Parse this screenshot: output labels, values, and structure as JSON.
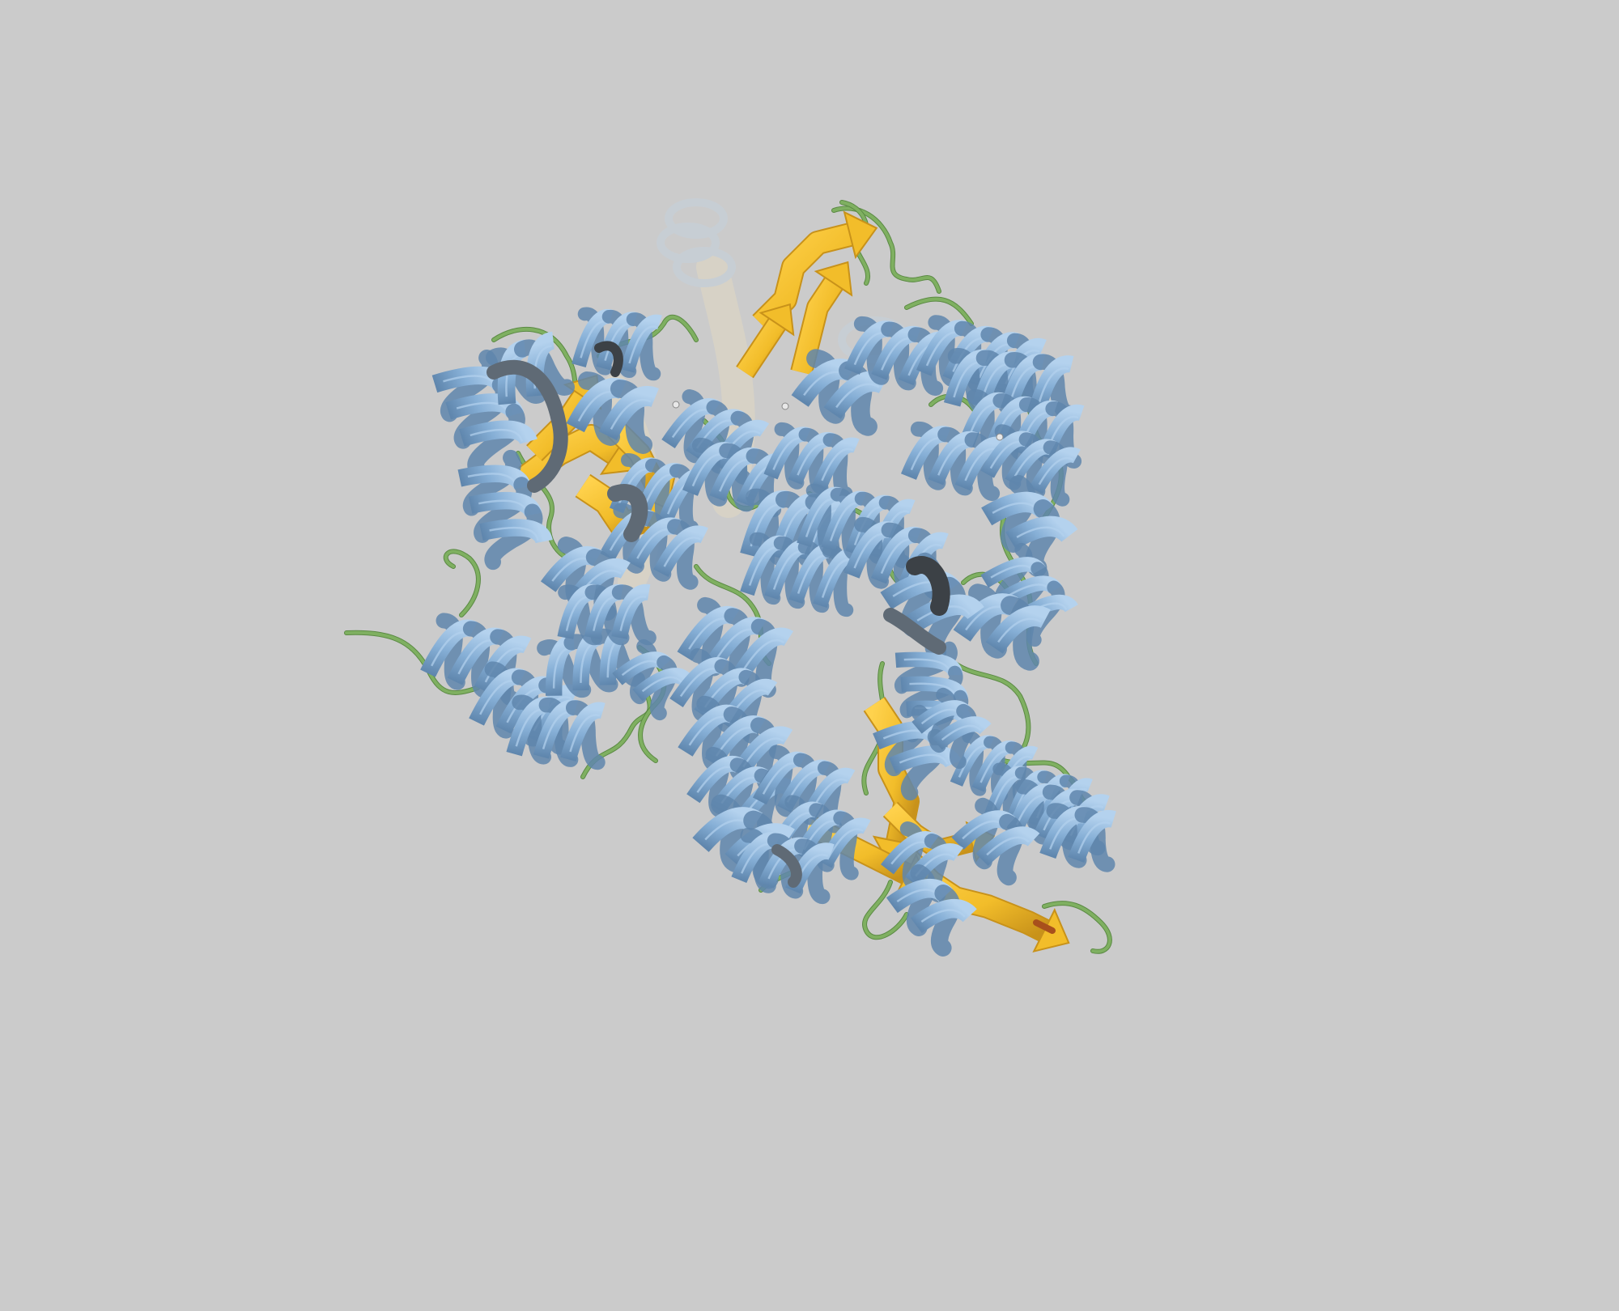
{
  "viewer": {
    "background_color": "#cbcbcb",
    "representation": "cartoon",
    "colors": {
      "helix": "#86afd6",
      "helix_dark": "#5f86ad",
      "helix_highlight": "#b4d2ee",
      "sheet": "#f2bd2a",
      "sheet_dark": "#c8921a",
      "coil": "#7fb061",
      "coil_dark": "#5b8a44",
      "ghost": "#e6dcc0",
      "ghost_helix": "#c4d2df",
      "grey_segment": "#5f6a75",
      "dark_segment": "#3c4146"
    }
  }
}
